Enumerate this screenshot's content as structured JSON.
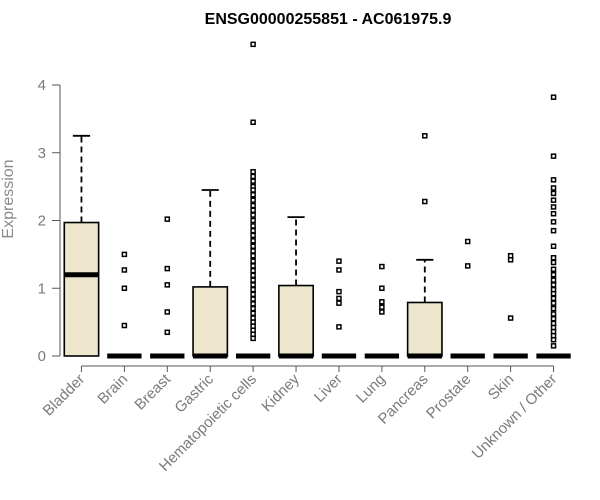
{
  "chart_data": {
    "type": "boxplot",
    "title": "ENSG00000255851 - AC061975.9",
    "xlabel": "",
    "ylabel": "Expression",
    "ylim": [
      0,
      4.6
    ],
    "yticks": [
      0,
      1,
      2,
      3,
      4
    ],
    "grid": false,
    "colors": {
      "box_fill": "#ede6cc",
      "box_stroke": "#000000",
      "axis_text": "#7a7a7a"
    },
    "categories": [
      "Bladder",
      "Brain",
      "Breast",
      "Gastric",
      "Hematopoietic cells",
      "Kidney",
      "Liver",
      "Lung",
      "Pancreas",
      "Prostate",
      "Skin",
      "Unknown / Other"
    ],
    "boxes": [
      {
        "category": "Bladder",
        "q1": 0,
        "median": 1.2,
        "q3": 1.97,
        "whisker_low": 0,
        "whisker_high": 3.25,
        "outliers": []
      },
      {
        "category": "Brain",
        "q1": 0,
        "median": 0,
        "q3": 0,
        "whisker_low": 0,
        "whisker_high": 0,
        "outliers": [
          1.5,
          1.27,
          1.0,
          0.45
        ]
      },
      {
        "category": "Breast",
        "q1": 0,
        "median": 0,
        "q3": 0,
        "whisker_low": 0,
        "whisker_high": 0,
        "outliers": [
          2.02,
          1.29,
          1.05,
          0.65,
          0.35
        ]
      },
      {
        "category": "Gastric",
        "q1": 0,
        "median": 0,
        "q3": 1.02,
        "whisker_low": 0,
        "whisker_high": 2.45,
        "outliers": []
      },
      {
        "category": "Hematopoietic cells",
        "q1": 0,
        "median": 0,
        "q3": 0,
        "whisker_low": 0,
        "whisker_high": 0,
        "outliers": [
          4.6,
          3.45,
          2.72,
          2.65,
          2.58,
          2.5,
          2.45,
          2.38,
          2.3,
          2.22,
          2.15,
          2.08,
          2.0,
          1.92,
          1.85,
          1.78,
          1.7,
          1.62,
          1.55,
          1.48,
          1.4,
          1.33,
          1.26,
          1.19,
          1.12,
          1.05,
          0.98,
          0.91,
          0.84,
          0.77,
          0.7,
          0.63,
          0.56,
          0.5,
          0.44,
          0.38,
          0.32,
          0.26
        ]
      },
      {
        "category": "Kidney",
        "q1": 0,
        "median": 0,
        "q3": 1.04,
        "whisker_low": 0,
        "whisker_high": 2.05,
        "outliers": []
      },
      {
        "category": "Liver",
        "q1": 0,
        "median": 0,
        "q3": 0,
        "whisker_low": 0,
        "whisker_high": 0,
        "outliers": [
          1.4,
          1.27,
          0.95,
          0.85,
          0.78,
          0.43
        ]
      },
      {
        "category": "Lung",
        "q1": 0,
        "median": 0,
        "q3": 0,
        "whisker_low": 0,
        "whisker_high": 0,
        "outliers": [
          1.32,
          1.0,
          0.8,
          0.72,
          0.65
        ]
      },
      {
        "category": "Pancreas",
        "q1": 0,
        "median": 0,
        "q3": 0.79,
        "whisker_low": 0,
        "whisker_high": 1.42,
        "outliers": [
          3.25,
          2.28
        ]
      },
      {
        "category": "Prostate",
        "q1": 0,
        "median": 0,
        "q3": 0,
        "whisker_low": 0,
        "whisker_high": 0,
        "outliers": [
          1.69,
          1.33
        ]
      },
      {
        "category": "Skin",
        "q1": 0,
        "median": 0,
        "q3": 0,
        "whisker_low": 0,
        "whisker_high": 0,
        "outliers": [
          1.48,
          1.42,
          0.56
        ]
      },
      {
        "category": "Unknown / Other",
        "q1": 0,
        "median": 0,
        "q3": 0,
        "whisker_low": 0,
        "whisker_high": 0,
        "outliers": [
          3.82,
          2.95,
          2.6,
          2.48,
          2.4,
          2.3,
          2.2,
          2.1,
          1.98,
          1.85,
          1.62,
          1.45,
          1.38,
          1.28,
          1.2,
          1.12,
          1.05,
          0.98,
          0.92,
          0.85,
          0.78,
          0.7,
          0.62,
          0.55,
          0.48,
          0.42,
          0.36,
          0.3,
          0.24,
          0.15
        ]
      }
    ]
  }
}
